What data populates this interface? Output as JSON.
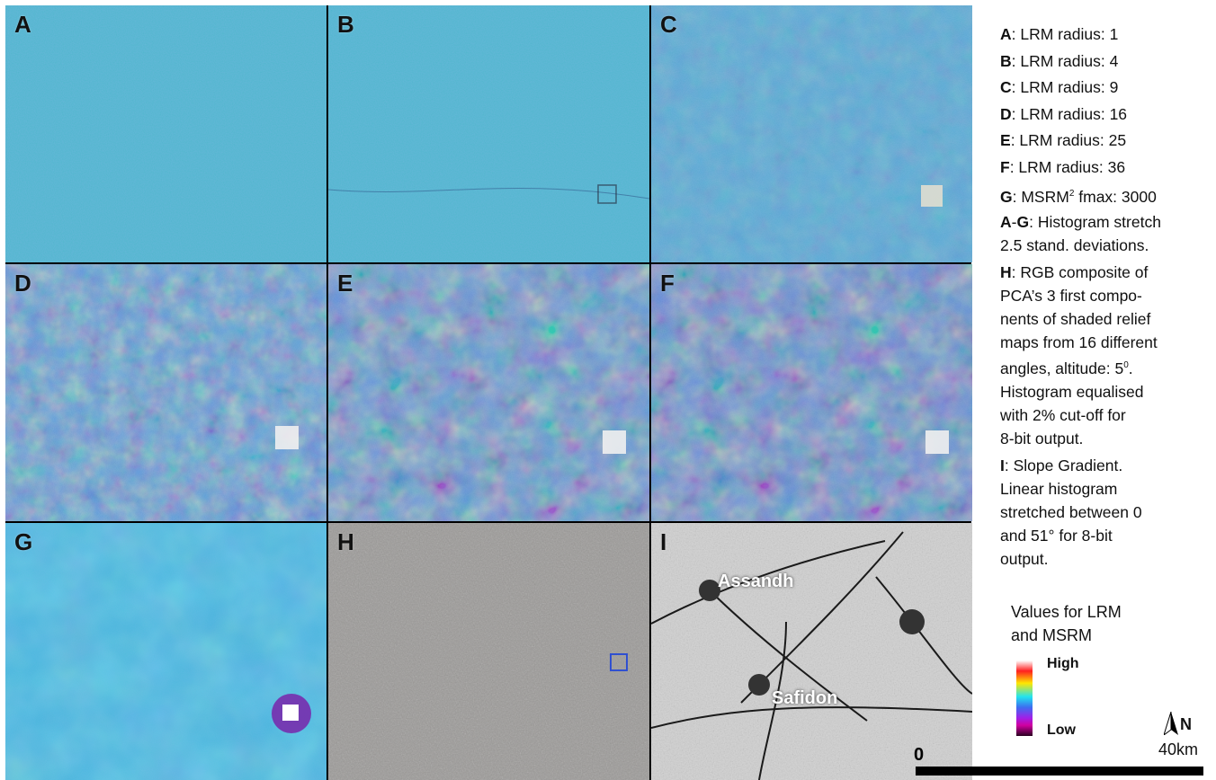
{
  "panels": [
    {
      "id": "A",
      "label": "A"
    },
    {
      "id": "B",
      "label": "B"
    },
    {
      "id": "C",
      "label": "C"
    },
    {
      "id": "D",
      "label": "D"
    },
    {
      "id": "E",
      "label": "E"
    },
    {
      "id": "F",
      "label": "F"
    },
    {
      "id": "G",
      "label": "G"
    },
    {
      "id": "H",
      "label": "H"
    },
    {
      "id": "I",
      "label": "I"
    }
  ],
  "towns": {
    "assandh": "Assandh",
    "safidon": "Safidon"
  },
  "scale": {
    "zero": "0",
    "km": "40km"
  },
  "north": {
    "label": "N"
  },
  "legend": {
    "A": {
      "key": "A",
      "text": ": LRM radius: 1"
    },
    "B": {
      "key": "B",
      "text": ": LRM radius: 4"
    },
    "C": {
      "key": "C",
      "text": ": LRM radius: 9"
    },
    "D": {
      "key": "D",
      "text": ": LRM radius: 16"
    },
    "E": {
      "key": "E",
      "text": ": LRM radius: 25"
    },
    "F": {
      "key": "F",
      "text": ": LRM radius: 36"
    },
    "G": {
      "key": "G",
      "text_pre": ": MSRM",
      "sup": "2",
      "text_post": " fmax: 3000"
    },
    "AG": {
      "key_a": "A",
      "dash": "-",
      "key_b": "G",
      "line1": ": Histogram stretch",
      "line2": "2.5 stand. deviations."
    },
    "H": {
      "key": "H",
      "line1": ": RGB composite of",
      "line2": "PCA’s 3 first compo-",
      "line3": "nents of shaded relief",
      "line4": "maps from 16 different",
      "line5_pre": "angles, altitude: 5",
      "line5_sup": "0",
      "line5_post": ".",
      "line6": "Histogram equalised",
      "line7": "with 2% cut-off for",
      "line8": "8-bit output."
    },
    "I": {
      "key": "I",
      "line1": ":  Slope Gradient.",
      "line2": "Linear histogram",
      "line3": "stretched between 0",
      "line4": "and 51° for 8-bit",
      "line5": "output."
    }
  },
  "colorbar": {
    "title_line1": "Values for LRM",
    "title_line2": "and MSRM",
    "high": "High",
    "low": "Low"
  },
  "colors": {
    "lrm_base": "#4fb6cc",
    "msrm_base": "#45b4dc",
    "rgb_base": "#9a9896",
    "slope_base": "#c9c9c9"
  }
}
